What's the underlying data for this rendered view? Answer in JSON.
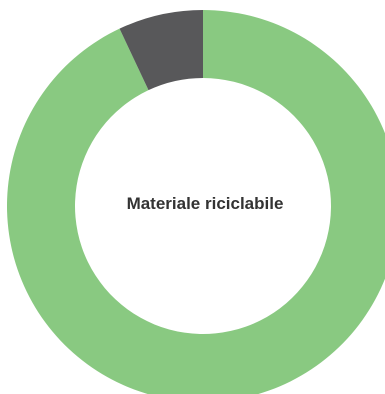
{
  "chart_data": {
    "type": "pie",
    "variant": "donut",
    "center_label": "Materiale riciclabile",
    "slices": [
      {
        "value": 93,
        "color": "#89c981"
      },
      {
        "value": 7,
        "color": "#58585a"
      }
    ],
    "legend": "none"
  }
}
